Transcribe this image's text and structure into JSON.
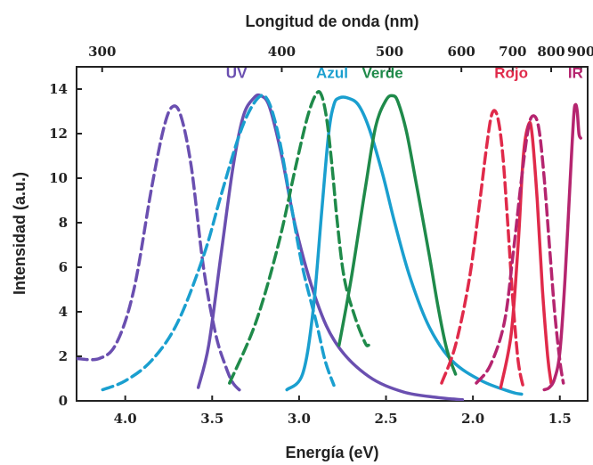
{
  "chart_data": {
    "type": "line",
    "xlabel": "Energía (eV)",
    "x2label": "Longitud de onda (nm)",
    "ylabel": "Intensidad (a.u.)",
    "xlim": [
      4.28,
      1.34
    ],
    "ylim": [
      0,
      15
    ],
    "x_ticks": [
      4.0,
      3.5,
      3.0,
      2.5,
      2.0,
      1.5
    ],
    "x_tick_labels": [
      "4.0",
      "3.5",
      "3.0",
      "2.5",
      "2.0",
      "1.5"
    ],
    "x2_ticks": [
      300,
      400,
      500,
      600,
      700,
      800,
      900
    ],
    "x2_tick_labels": [
      "300",
      "400",
      "500",
      "600",
      "700",
      "800",
      "900"
    ],
    "y_ticks": [
      0,
      2,
      4,
      6,
      8,
      10,
      12,
      14
    ],
    "y_tick_labels": [
      "0",
      "2",
      "4",
      "6",
      "8",
      "10",
      "12",
      "14"
    ],
    "grid": false,
    "colors": {
      "purple": "#6a4fb0",
      "cyan": "#1a9fcf",
      "green": "#1f8a4a",
      "red": "#e02a4a",
      "magenta": "#b5256f"
    },
    "series": [
      {
        "name": "UV",
        "color": "#6a4fb0",
        "style": "dashed",
        "x": [
          4.28,
          4.15,
          4.05,
          3.95,
          3.85,
          3.78,
          3.73,
          3.68,
          3.62,
          3.55,
          3.48,
          3.42,
          3.38,
          3.33
        ],
        "y": [
          1.9,
          1.9,
          2.6,
          5.0,
          9.5,
          12.2,
          13.2,
          12.8,
          10.5,
          6.0,
          3.0,
          1.5,
          0.8,
          0.4
        ]
      },
      {
        "name": "UV",
        "color": "#6a4fb0",
        "style": "solid",
        "x": [
          3.58,
          3.52,
          3.45,
          3.38,
          3.32,
          3.26,
          3.22,
          3.17,
          3.1,
          3.02,
          2.9,
          2.78,
          2.6,
          2.4,
          2.2,
          2.06
        ],
        "y": [
          0.6,
          2.5,
          6.5,
          10.5,
          12.8,
          13.6,
          13.7,
          13.2,
          11.0,
          7.8,
          4.5,
          2.5,
          1.1,
          0.4,
          0.15,
          0.05
        ]
      },
      {
        "name": "Azul",
        "color": "#1a9fcf",
        "style": "dashed",
        "x": [
          4.13,
          4.0,
          3.85,
          3.7,
          3.55,
          3.45,
          3.35,
          3.28,
          3.22,
          3.18,
          3.14,
          3.1,
          3.05,
          2.98,
          2.9,
          2.85,
          2.8
        ],
        "y": [
          0.5,
          0.9,
          1.8,
          3.5,
          6.5,
          9.2,
          11.8,
          13.1,
          13.7,
          13.5,
          12.6,
          11.2,
          9.0,
          6.0,
          3.5,
          1.8,
          0.7
        ]
      },
      {
        "name": "Azul",
        "color": "#1a9fcf",
        "style": "solid",
        "x": [
          3.07,
          2.98,
          2.92,
          2.87,
          2.83,
          2.8,
          2.77,
          2.72,
          2.66,
          2.6,
          2.52,
          2.45,
          2.36,
          2.25,
          2.12,
          1.95,
          1.78,
          1.72
        ],
        "y": [
          0.5,
          1.2,
          4.0,
          8.5,
          12.0,
          13.3,
          13.6,
          13.6,
          13.3,
          12.3,
          10.2,
          8.0,
          5.5,
          3.3,
          1.8,
          0.9,
          0.4,
          0.3
        ]
      },
      {
        "name": "Verde",
        "color": "#1f8a4a",
        "style": "dashed",
        "x": [
          3.4,
          3.25,
          3.12,
          3.02,
          2.95,
          2.9,
          2.87,
          2.84,
          2.81,
          2.78,
          2.74,
          2.68,
          2.62,
          2.6
        ],
        "y": [
          0.8,
          3.5,
          7.0,
          10.5,
          12.8,
          13.8,
          13.7,
          12.6,
          10.5,
          8.0,
          5.5,
          3.8,
          2.6,
          2.5
        ]
      },
      {
        "name": "Verde",
        "color": "#1f8a4a",
        "style": "solid",
        "x": [
          2.77,
          2.7,
          2.62,
          2.56,
          2.5,
          2.46,
          2.43,
          2.38,
          2.32,
          2.25,
          2.2,
          2.15,
          2.1
        ],
        "y": [
          2.5,
          5.5,
          9.5,
          12.3,
          13.5,
          13.7,
          13.4,
          12.0,
          9.5,
          6.5,
          4.2,
          2.3,
          1.2
        ]
      },
      {
        "name": "Rojo",
        "color": "#e02a4a",
        "style": "dashed",
        "x": [
          2.18,
          2.1,
          2.02,
          1.96,
          1.92,
          1.89,
          1.86,
          1.83,
          1.8,
          1.77,
          1.74,
          1.71
        ],
        "y": [
          0.8,
          2.5,
          5.5,
          9.0,
          11.5,
          12.9,
          12.8,
          11.2,
          8.0,
          4.5,
          1.8,
          0.6
        ]
      },
      {
        "name": "Rojo",
        "color": "#e02a4a",
        "style": "solid",
        "x": [
          1.84,
          1.78,
          1.74,
          1.71,
          1.68,
          1.66,
          1.63,
          1.6,
          1.57,
          1.55
        ],
        "y": [
          0.6,
          3.0,
          7.0,
          11.0,
          12.4,
          12.0,
          9.0,
          5.0,
          2.0,
          0.8
        ]
      },
      {
        "name": "IR",
        "color": "#b5256f",
        "style": "dashed",
        "x": [
          1.98,
          1.9,
          1.82,
          1.77,
          1.72,
          1.68,
          1.65,
          1.62,
          1.59,
          1.56,
          1.53,
          1.5,
          1.48
        ],
        "y": [
          0.8,
          1.6,
          3.5,
          6.5,
          10.0,
          12.3,
          12.8,
          12.2,
          10.0,
          7.0,
          4.0,
          1.8,
          0.8
        ]
      },
      {
        "name": "IR",
        "color": "#b5256f",
        "style": "solid",
        "x": [
          1.59,
          1.56,
          1.53,
          1.5,
          1.47,
          1.44,
          1.42,
          1.41,
          1.4,
          1.39,
          1.38
        ],
        "y": [
          0.5,
          0.6,
          1.0,
          2.2,
          5.5,
          10.0,
          12.8,
          13.3,
          13.0,
          12.0,
          11.8
        ]
      }
    ],
    "series_labels": [
      {
        "text": "UV",
        "color": "#6a4fb0",
        "x": 3.36,
        "y": 14.5
      },
      {
        "text": "Azul",
        "color": "#1a9fcf",
        "x": 2.81,
        "y": 14.5
      },
      {
        "text": "Verde",
        "color": "#1f8a4a",
        "x": 2.52,
        "y": 14.5
      },
      {
        "text": "Rojo",
        "color": "#e02a4a",
        "x": 1.78,
        "y": 14.5
      },
      {
        "text": "IR",
        "color": "#b5256f",
        "x": 1.41,
        "y": 14.5
      }
    ]
  }
}
